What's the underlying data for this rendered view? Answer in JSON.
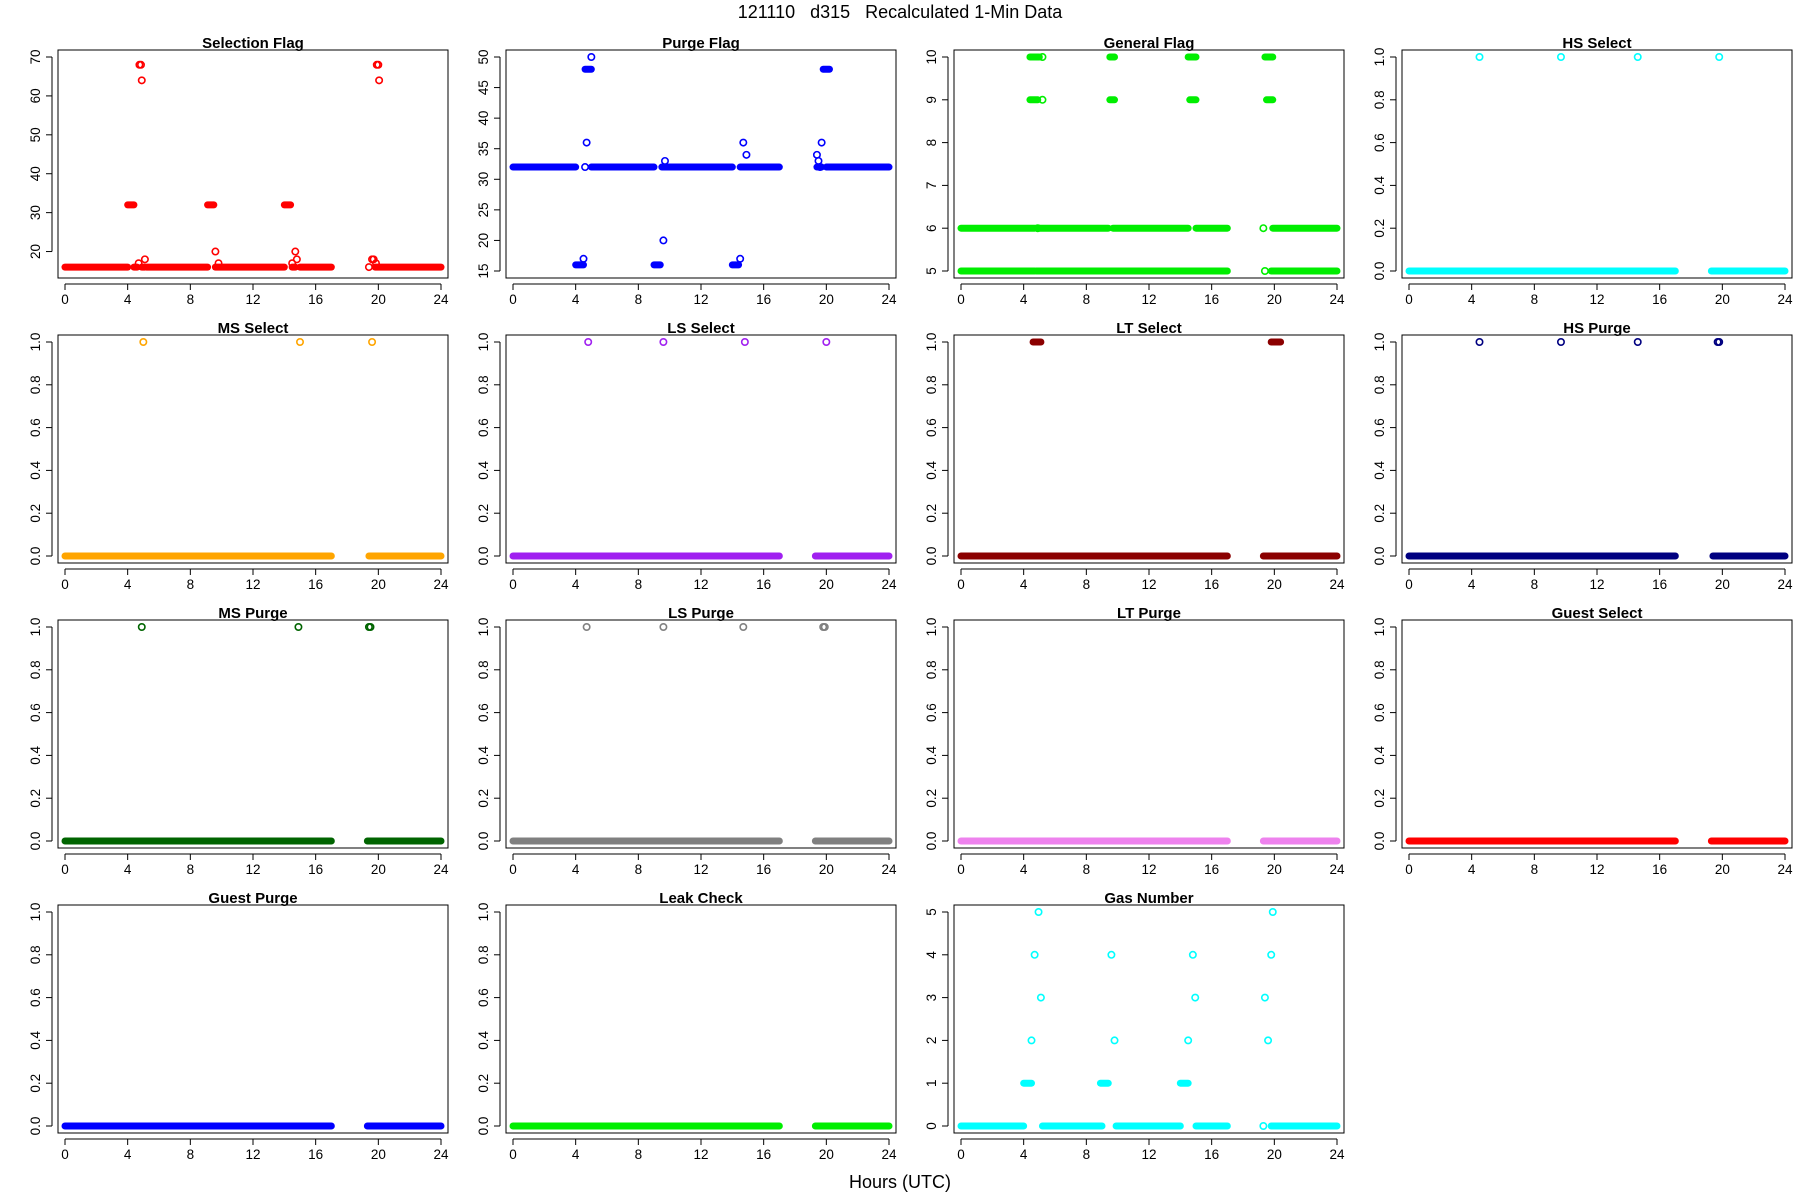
{
  "header": {
    "title": "121110   d315   Recalculated 1-Min Data",
    "xlabel": "Hours (UTC)"
  },
  "chart_data": [
    {
      "type": "scatter",
      "title": "Selection Flag",
      "color": "#ff0000",
      "xlim": [
        0,
        24
      ],
      "ylim": [
        15,
        70
      ],
      "xticks": [
        0,
        4,
        8,
        12,
        16,
        20,
        24
      ],
      "yticks": [
        20,
        30,
        40,
        50,
        60,
        70
      ],
      "runs": [
        [
          0,
          4.0,
          16
        ],
        [
          4.0,
          4.4,
          32
        ],
        [
          4.4,
          4.6,
          16
        ],
        [
          4.9,
          5.1,
          16
        ],
        [
          5.2,
          9.1,
          16
        ],
        [
          9.1,
          9.5,
          32
        ],
        [
          9.6,
          14.0,
          16
        ],
        [
          14.0,
          14.4,
          32
        ],
        [
          14.5,
          14.7,
          16
        ],
        [
          15.0,
          17.0,
          16
        ],
        [
          19.8,
          24.0,
          16
        ]
      ],
      "points": [
        [
          4.7,
          17
        ],
        [
          4.75,
          68
        ],
        [
          4.85,
          68
        ],
        [
          4.9,
          64
        ],
        [
          5.1,
          18
        ],
        [
          9.6,
          20
        ],
        [
          9.8,
          17
        ],
        [
          14.5,
          17
        ],
        [
          14.7,
          20
        ],
        [
          14.8,
          18
        ],
        [
          19.4,
          16
        ],
        [
          19.6,
          18
        ],
        [
          19.7,
          18
        ],
        [
          19.85,
          17
        ],
        [
          19.9,
          68
        ],
        [
          20.0,
          68
        ],
        [
          20.05,
          64
        ]
      ]
    },
    {
      "type": "scatter",
      "title": "Purge Flag",
      "color": "#0000ff",
      "xlim": [
        0,
        24
      ],
      "ylim": [
        15,
        50
      ],
      "xticks": [
        0,
        4,
        8,
        12,
        16,
        20,
        24
      ],
      "yticks": [
        15,
        20,
        25,
        30,
        35,
        40,
        45,
        50
      ],
      "runs": [
        [
          0,
          4.0,
          32
        ],
        [
          4.0,
          4.5,
          16
        ],
        [
          4.6,
          5.0,
          48
        ],
        [
          5.0,
          9.0,
          32
        ],
        [
          9.0,
          9.4,
          16
        ],
        [
          9.5,
          14.0,
          32
        ],
        [
          14.0,
          14.4,
          16
        ],
        [
          14.5,
          17.0,
          32
        ],
        [
          19.4,
          19.7,
          32
        ],
        [
          19.8,
          20.2,
          48
        ],
        [
          20.0,
          24.0,
          32
        ]
      ],
      "points": [
        [
          4.5,
          17
        ],
        [
          4.6,
          32
        ],
        [
          4.7,
          36
        ],
        [
          5.0,
          50
        ],
        [
          9.6,
          20
        ],
        [
          9.7,
          33
        ],
        [
          14.5,
          17
        ],
        [
          14.7,
          36
        ],
        [
          14.9,
          34
        ],
        [
          19.4,
          34
        ],
        [
          19.5,
          33
        ],
        [
          19.6,
          32
        ],
        [
          19.7,
          36
        ]
      ]
    },
    {
      "type": "scatter",
      "title": "General Flag",
      "color": "#00ee00",
      "xlim": [
        0,
        24
      ],
      "ylim": [
        5,
        10
      ],
      "xticks": [
        0,
        4,
        8,
        12,
        16,
        20,
        24
      ],
      "yticks": [
        5,
        6,
        7,
        8,
        9,
        10
      ],
      "runs": [
        [
          0,
          4.7,
          5
        ],
        [
          4.8,
          17.0,
          5
        ],
        [
          0,
          4.7,
          6
        ],
        [
          4.8,
          9.4,
          6
        ],
        [
          9.7,
          14.5,
          6
        ],
        [
          15.0,
          17.0,
          6
        ],
        [
          19.9,
          24.0,
          6
        ],
        [
          19.8,
          24.0,
          5
        ],
        [
          4.4,
          5.0,
          10
        ],
        [
          9.5,
          9.8,
          10
        ],
        [
          14.5,
          15.0,
          10
        ],
        [
          19.4,
          19.9,
          10
        ],
        [
          4.4,
          4.9,
          9
        ],
        [
          9.5,
          9.8,
          9
        ],
        [
          14.6,
          15.0,
          9
        ],
        [
          19.5,
          19.9,
          9
        ]
      ],
      "points": [
        [
          4.9,
          6
        ],
        [
          5.2,
          10
        ],
        [
          5.2,
          9
        ],
        [
          19.3,
          6
        ],
        [
          19.4,
          5
        ]
      ]
    },
    {
      "type": "scatter",
      "title": "HS Select",
      "color": "#00ffff",
      "xlim": [
        0,
        24
      ],
      "ylim": [
        0,
        1
      ],
      "xticks": [
        0,
        4,
        8,
        12,
        16,
        20,
        24
      ],
      "yticks": [
        0.0,
        0.2,
        0.4,
        0.6,
        0.8,
        1.0
      ],
      "runs": [
        [
          0,
          17.0,
          0
        ],
        [
          19.3,
          24.0,
          0
        ]
      ],
      "points": [
        [
          4.5,
          1
        ],
        [
          9.7,
          1
        ],
        [
          14.6,
          1
        ],
        [
          19.8,
          1
        ]
      ]
    },
    {
      "type": "scatter",
      "title": "MS Select",
      "color": "#ffa500",
      "xlim": [
        0,
        24
      ],
      "ylim": [
        0,
        1
      ],
      "xticks": [
        0,
        4,
        8,
        12,
        16,
        20,
        24
      ],
      "yticks": [
        0.0,
        0.2,
        0.4,
        0.6,
        0.8,
        1.0
      ],
      "runs": [
        [
          0,
          17.0,
          0
        ],
        [
          19.4,
          24.0,
          0
        ]
      ],
      "points": [
        [
          5.0,
          1
        ],
        [
          15.0,
          1
        ],
        [
          19.6,
          1
        ]
      ]
    },
    {
      "type": "scatter",
      "title": "LS Select",
      "color": "#a020f0",
      "xlim": [
        0,
        24
      ],
      "ylim": [
        0,
        1
      ],
      "xticks": [
        0,
        4,
        8,
        12,
        16,
        20,
        24
      ],
      "yticks": [
        0.0,
        0.2,
        0.4,
        0.6,
        0.8,
        1.0
      ],
      "runs": [
        [
          0,
          17.0,
          0
        ],
        [
          19.3,
          24.0,
          0
        ]
      ],
      "points": [
        [
          4.8,
          1
        ],
        [
          9.6,
          1
        ],
        [
          14.8,
          1
        ],
        [
          20.0,
          1
        ]
      ]
    },
    {
      "type": "scatter",
      "title": "LT Select",
      "color": "#8b0000",
      "xlim": [
        0,
        24
      ],
      "ylim": [
        0,
        1
      ],
      "xticks": [
        0,
        4,
        8,
        12,
        16,
        20,
        24
      ],
      "yticks": [
        0.0,
        0.2,
        0.4,
        0.6,
        0.8,
        1.0
      ],
      "runs": [
        [
          0,
          17.0,
          0
        ],
        [
          19.3,
          24.0,
          0
        ],
        [
          4.6,
          5.1,
          1
        ],
        [
          19.8,
          20.4,
          1
        ]
      ],
      "points": []
    },
    {
      "type": "scatter",
      "title": "HS Purge",
      "color": "#000080",
      "xlim": [
        0,
        24
      ],
      "ylim": [
        0,
        1
      ],
      "xticks": [
        0,
        4,
        8,
        12,
        16,
        20,
        24
      ],
      "yticks": [
        0.0,
        0.2,
        0.4,
        0.6,
        0.8,
        1.0
      ],
      "runs": [
        [
          0,
          17.0,
          0
        ],
        [
          19.4,
          24.0,
          0
        ]
      ],
      "points": [
        [
          4.5,
          1
        ],
        [
          9.7,
          1
        ],
        [
          14.6,
          1
        ],
        [
          19.7,
          1
        ],
        [
          19.8,
          1
        ]
      ]
    },
    {
      "type": "scatter",
      "title": "MS Purge",
      "color": "#006400",
      "xlim": [
        0,
        24
      ],
      "ylim": [
        0,
        1
      ],
      "xticks": [
        0,
        4,
        8,
        12,
        16,
        20,
        24
      ],
      "yticks": [
        0.0,
        0.2,
        0.4,
        0.6,
        0.8,
        1.0
      ],
      "runs": [
        [
          0,
          17.0,
          0
        ],
        [
          19.3,
          24.0,
          0
        ]
      ],
      "points": [
        [
          4.9,
          1
        ],
        [
          14.9,
          1
        ],
        [
          19.4,
          1
        ],
        [
          19.5,
          1
        ]
      ]
    },
    {
      "type": "scatter",
      "title": "LS Purge",
      "color": "#808080",
      "xlim": [
        0,
        24
      ],
      "ylim": [
        0,
        1
      ],
      "xticks": [
        0,
        4,
        8,
        12,
        16,
        20,
        24
      ],
      "yticks": [
        0.0,
        0.2,
        0.4,
        0.6,
        0.8,
        1.0
      ],
      "runs": [
        [
          0,
          17.0,
          0
        ],
        [
          19.3,
          24.0,
          0
        ]
      ],
      "points": [
        [
          4.7,
          1
        ],
        [
          9.6,
          1
        ],
        [
          14.7,
          1
        ],
        [
          19.8,
          1
        ],
        [
          19.9,
          1
        ]
      ]
    },
    {
      "type": "scatter",
      "title": "LT Purge",
      "color": "#ee82ee",
      "xlim": [
        0,
        24
      ],
      "ylim": [
        0,
        1
      ],
      "xticks": [
        0,
        4,
        8,
        12,
        16,
        20,
        24
      ],
      "yticks": [
        0.0,
        0.2,
        0.4,
        0.6,
        0.8,
        1.0
      ],
      "runs": [
        [
          0,
          17.0,
          0
        ],
        [
          19.3,
          24.0,
          0
        ]
      ],
      "points": []
    },
    {
      "type": "scatter",
      "title": "Guest Select",
      "color": "#ff0000",
      "xlim": [
        0,
        24
      ],
      "ylim": [
        0,
        1
      ],
      "xticks": [
        0,
        4,
        8,
        12,
        16,
        20,
        24
      ],
      "yticks": [
        0.0,
        0.2,
        0.4,
        0.6,
        0.8,
        1.0
      ],
      "runs": [
        [
          0,
          17.0,
          0
        ],
        [
          19.3,
          24.0,
          0
        ]
      ],
      "points": []
    },
    {
      "type": "scatter",
      "title": "Guest Purge",
      "color": "#0000ff",
      "xlim": [
        0,
        24
      ],
      "ylim": [
        0,
        1
      ],
      "xticks": [
        0,
        4,
        8,
        12,
        16,
        20,
        24
      ],
      "yticks": [
        0.0,
        0.2,
        0.4,
        0.6,
        0.8,
        1.0
      ],
      "runs": [
        [
          0,
          17.0,
          0
        ],
        [
          19.3,
          24.0,
          0
        ]
      ],
      "points": []
    },
    {
      "type": "scatter",
      "title": "Leak Check",
      "color": "#00ee00",
      "xlim": [
        0,
        24
      ],
      "ylim": [
        0,
        1
      ],
      "xticks": [
        0,
        4,
        8,
        12,
        16,
        20,
        24
      ],
      "yticks": [
        0.0,
        0.2,
        0.4,
        0.6,
        0.8,
        1.0
      ],
      "runs": [
        [
          0,
          17.0,
          0
        ],
        [
          19.3,
          24.0,
          0
        ]
      ],
      "points": []
    },
    {
      "type": "scatter",
      "title": "Gas Number",
      "color": "#00ffff",
      "xlim": [
        0,
        24
      ],
      "ylim": [
        0,
        5
      ],
      "xticks": [
        0,
        4,
        8,
        12,
        16,
        20,
        24
      ],
      "yticks": [
        0,
        1,
        2,
        3,
        4,
        5
      ],
      "runs": [
        [
          0,
          4.0,
          0
        ],
        [
          5.2,
          9.0,
          0
        ],
        [
          9.9,
          14.0,
          0
        ],
        [
          15.0,
          17.0,
          0
        ],
        [
          19.8,
          24.0,
          0
        ],
        [
          4.0,
          4.5,
          1
        ],
        [
          8.9,
          9.4,
          1
        ],
        [
          14.0,
          14.5,
          1
        ]
      ],
      "points": [
        [
          4.5,
          2
        ],
        [
          4.7,
          4
        ],
        [
          4.95,
          5
        ],
        [
          5.1,
          3
        ],
        [
          9.6,
          4
        ],
        [
          9.8,
          2
        ],
        [
          14.5,
          2
        ],
        [
          14.8,
          4
        ],
        [
          14.95,
          3
        ],
        [
          19.3,
          0
        ],
        [
          19.4,
          3
        ],
        [
          19.6,
          2
        ],
        [
          19.8,
          4
        ],
        [
          19.9,
          5
        ]
      ]
    }
  ]
}
